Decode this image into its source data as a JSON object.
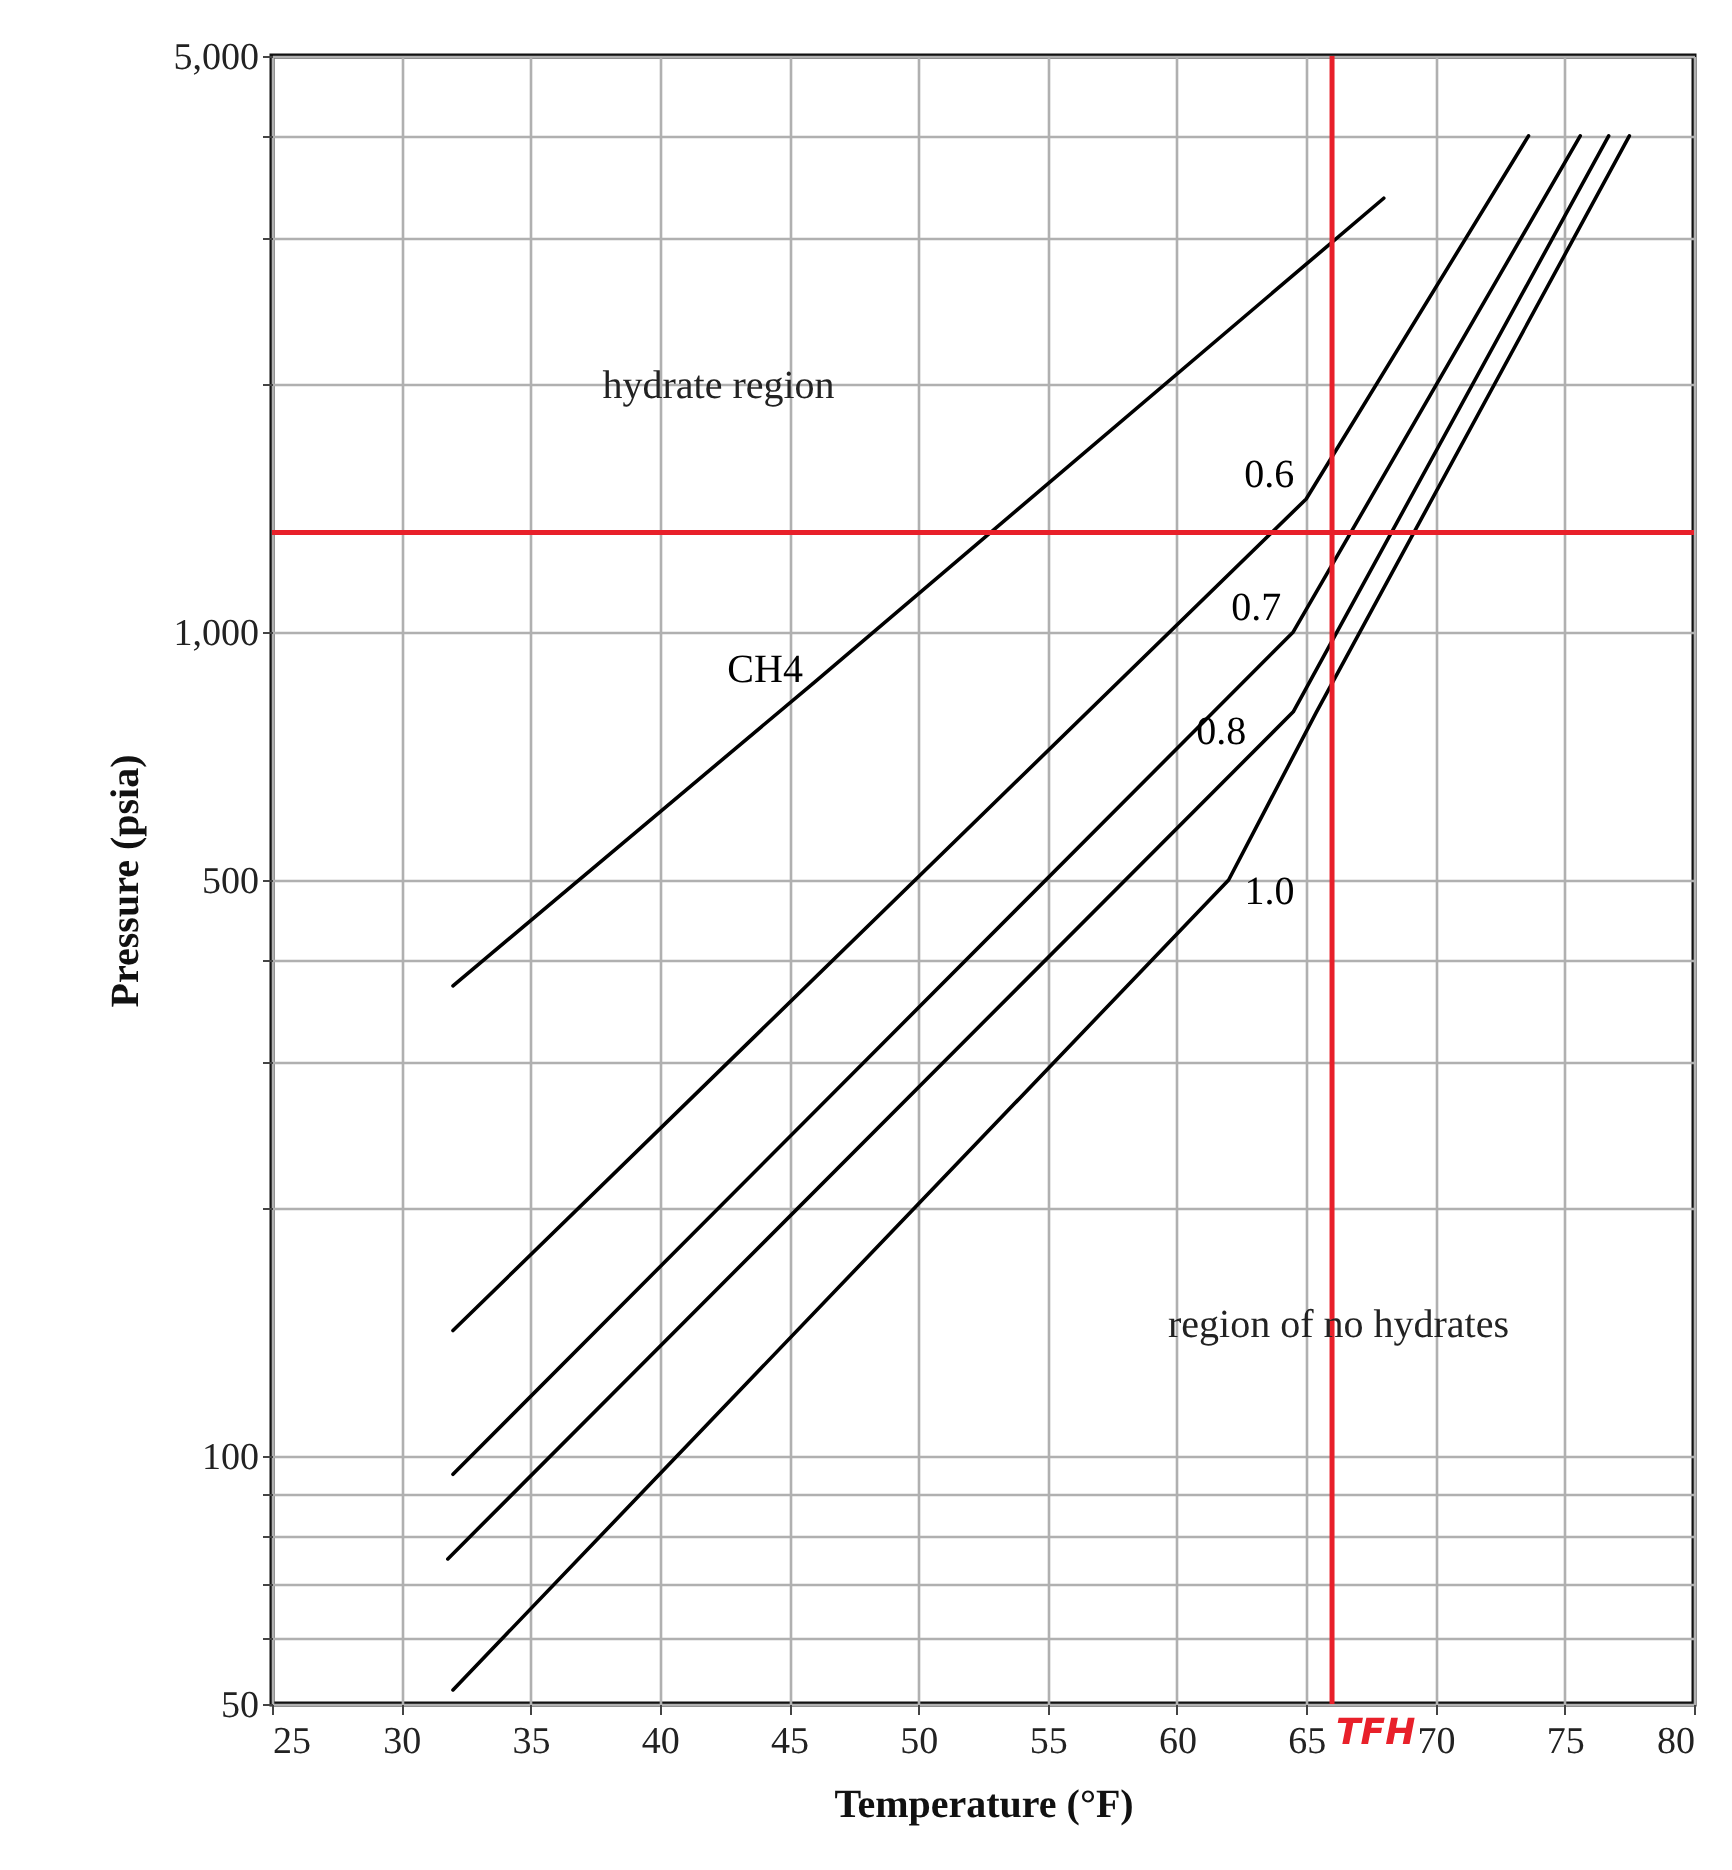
{
  "chart_data": {
    "type": "line",
    "xlabel": "Temperature (°F)",
    "ylabel": "Pressure (psia)",
    "xlim": [
      25,
      80
    ],
    "xticks": [
      25,
      30,
      35,
      40,
      45,
      50,
      55,
      60,
      65,
      70,
      75,
      80
    ],
    "ylim": [
      50,
      5000
    ],
    "yticks": [
      50,
      {
        "value": 60,
        "label": null
      },
      {
        "value": 70,
        "label": null
      },
      {
        "value": 80,
        "label": null
      },
      {
        "value": 90,
        "label": null
      },
      100,
      {
        "value": 200,
        "label": null
      },
      {
        "value": 300,
        "label": null
      },
      {
        "value": 400,
        "label": null
      },
      500,
      {
        "value": 1000,
        "label": "1,000"
      },
      {
        "value": 2000,
        "label": null
      },
      {
        "value": 3000,
        "label": null
      },
      {
        "value": 4000,
        "label": null
      },
      {
        "value": 5000,
        "label": "5,000"
      }
    ],
    "log": true,
    "grid": true,
    "legend": false,
    "marker": "none",
    "line_style": "solid",
    "series": [
      {
        "name": "CH4",
        "color": "#000000",
        "x": [
          32,
          46,
          68
        ],
        "values": [
          372,
          870,
          3360
        ]
      },
      {
        "name": "0.6",
        "color": "#000000",
        "x": [
          32,
          65,
          73.6
        ],
        "values": [
          142,
          1450,
          4000
        ]
      },
      {
        "name": "0.7",
        "color": "#000000",
        "x": [
          32,
          64.5,
          75.6
        ],
        "values": [
          95,
          1000,
          4000
        ]
      },
      {
        "name": "0.8",
        "color": "#000000",
        "x": [
          31.8,
          64.5,
          76.7
        ],
        "values": [
          75,
          800,
          4000
        ]
      },
      {
        "name": "1.0",
        "color": "#000000",
        "x": [
          32,
          62,
          65.4,
          77.5
        ],
        "values": [
          52,
          500,
          800,
          4000
        ]
      }
    ],
    "ref_lines": [
      {
        "axis": "y",
        "value": 1320,
        "color": "#e8202a"
      },
      {
        "axis": "x",
        "value": 66,
        "label": "TFH",
        "color": "#e8202a"
      }
    ],
    "annotations": [
      "hydrate region",
      "region of no hydrates"
    ]
  }
}
